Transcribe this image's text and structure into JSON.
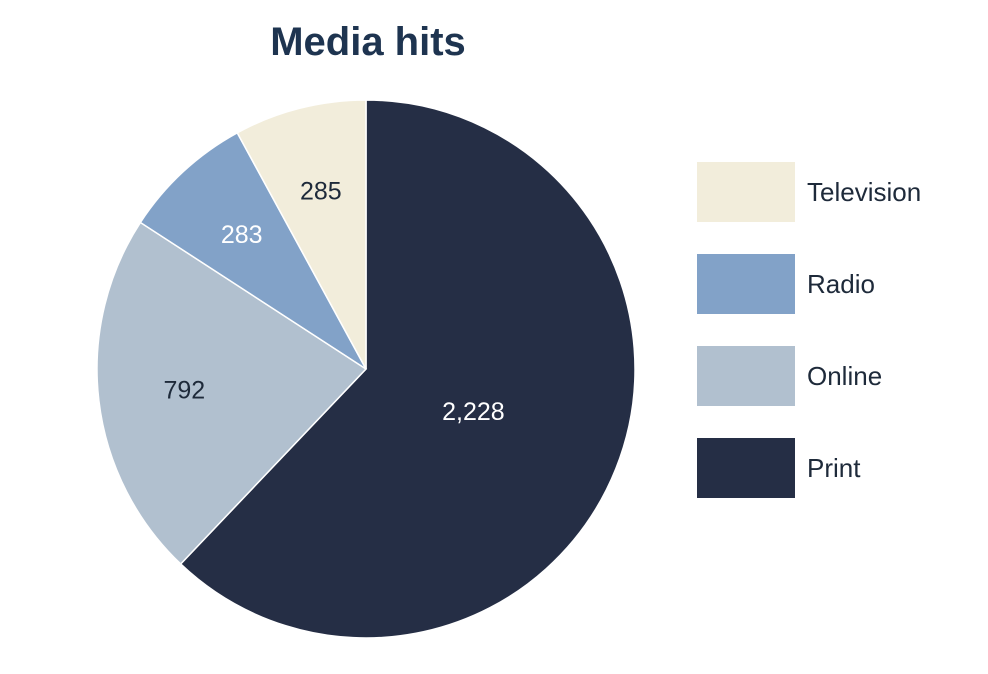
{
  "chart_data": {
    "type": "pie",
    "title": "Media hits",
    "slices": [
      {
        "name": "Print",
        "value": 2228,
        "label": "2,228",
        "color": "#252e45",
        "label_color": "#ffffff"
      },
      {
        "name": "Online",
        "value": 792,
        "label": "792",
        "color": "#b1c0cf",
        "label_color": "#1e2a3a"
      },
      {
        "name": "Radio",
        "value": 283,
        "label": "283",
        "color": "#82a2c8",
        "label_color": "#ffffff"
      },
      {
        "name": "Television",
        "value": 285,
        "label": "285",
        "color": "#f2eddb",
        "label_color": "#1e2a3a"
      }
    ],
    "legend_order": [
      "Television",
      "Radio",
      "Online",
      "Print"
    ],
    "legend_position": "right"
  }
}
